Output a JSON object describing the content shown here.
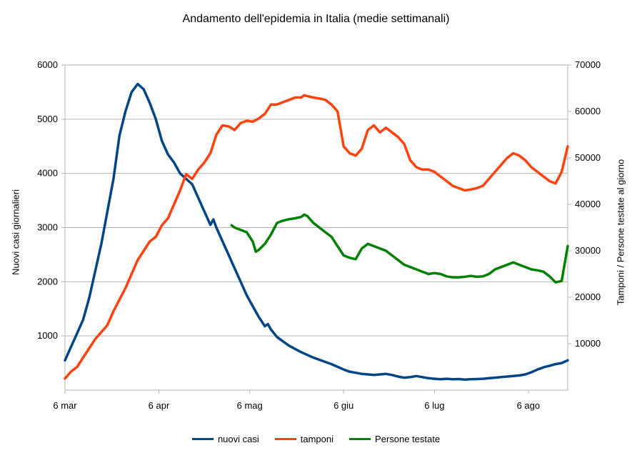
{
  "chart_data": {
    "type": "line",
    "title": "Andamento dell'epidemia in Italia (medie settimanali)",
    "ylabel_left": "Nuovi casi giornalieri",
    "ylabel_right": "Tamponi / Persone testate al giorno",
    "x_ticks": [
      "6 mar",
      "6 apr",
      "6 mag",
      "6 giu",
      "6 lug",
      "6 ago"
    ],
    "x_tick_days": [
      0,
      31,
      61,
      92,
      122,
      153
    ],
    "xlim": [
      0,
      166
    ],
    "ylim_left": [
      0,
      6000
    ],
    "ylim_right": [
      0,
      70000
    ],
    "yticks_left": [
      1000,
      2000,
      3000,
      4000,
      5000,
      6000
    ],
    "yticks_right": [
      10000,
      20000,
      30000,
      40000,
      50000,
      60000,
      70000
    ],
    "grid": true,
    "legend_position": "bottom",
    "series": [
      {
        "name": "nuovi casi",
        "axis": "left",
        "color": "#004586",
        "points": [
          [
            0,
            550
          ],
          [
            2,
            800
          ],
          [
            4,
            1050
          ],
          [
            6,
            1300
          ],
          [
            8,
            1700
          ],
          [
            10,
            2200
          ],
          [
            12,
            2700
          ],
          [
            14,
            3300
          ],
          [
            16,
            3900
          ],
          [
            18,
            4700
          ],
          [
            20,
            5150
          ],
          [
            22,
            5500
          ],
          [
            24,
            5650
          ],
          [
            26,
            5550
          ],
          [
            28,
            5300
          ],
          [
            30,
            5000
          ],
          [
            32,
            4600
          ],
          [
            34,
            4350
          ],
          [
            36,
            4200
          ],
          [
            38,
            4000
          ],
          [
            40,
            3900
          ],
          [
            42,
            3800
          ],
          [
            44,
            3550
          ],
          [
            46,
            3300
          ],
          [
            48,
            3050
          ],
          [
            49,
            3150
          ],
          [
            50,
            3000
          ],
          [
            52,
            2750
          ],
          [
            54,
            2500
          ],
          [
            56,
            2250
          ],
          [
            58,
            2000
          ],
          [
            60,
            1750
          ],
          [
            62,
            1550
          ],
          [
            64,
            1350
          ],
          [
            66,
            1180
          ],
          [
            67,
            1220
          ],
          [
            68,
            1120
          ],
          [
            70,
            980
          ],
          [
            72,
            900
          ],
          [
            74,
            820
          ],
          [
            76,
            760
          ],
          [
            78,
            700
          ],
          [
            80,
            650
          ],
          [
            82,
            600
          ],
          [
            84,
            560
          ],
          [
            86,
            520
          ],
          [
            88,
            480
          ],
          [
            90,
            430
          ],
          [
            92,
            380
          ],
          [
            94,
            340
          ],
          [
            96,
            320
          ],
          [
            98,
            300
          ],
          [
            100,
            290
          ],
          [
            102,
            280
          ],
          [
            104,
            290
          ],
          [
            106,
            300
          ],
          [
            108,
            280
          ],
          [
            110,
            250
          ],
          [
            112,
            230
          ],
          [
            114,
            240
          ],
          [
            116,
            260
          ],
          [
            118,
            240
          ],
          [
            120,
            220
          ],
          [
            122,
            210
          ],
          [
            124,
            200
          ],
          [
            126,
            210
          ],
          [
            128,
            200
          ],
          [
            130,
            205
          ],
          [
            132,
            195
          ],
          [
            134,
            200
          ],
          [
            136,
            205
          ],
          [
            138,
            210
          ],
          [
            140,
            220
          ],
          [
            142,
            230
          ],
          [
            144,
            240
          ],
          [
            146,
            250
          ],
          [
            148,
            260
          ],
          [
            150,
            270
          ],
          [
            152,
            290
          ],
          [
            154,
            330
          ],
          [
            156,
            380
          ],
          [
            158,
            420
          ],
          [
            160,
            450
          ],
          [
            162,
            480
          ],
          [
            164,
            500
          ],
          [
            166,
            550
          ]
        ]
      },
      {
        "name": "tamponi",
        "axis": "right",
        "color": "#ff420e",
        "points": [
          [
            0,
            2500
          ],
          [
            2,
            4000
          ],
          [
            4,
            5000
          ],
          [
            6,
            7000
          ],
          [
            8,
            9000
          ],
          [
            10,
            11000
          ],
          [
            12,
            12500
          ],
          [
            14,
            14000
          ],
          [
            16,
            17000
          ],
          [
            18,
            19500
          ],
          [
            20,
            22000
          ],
          [
            22,
            25000
          ],
          [
            24,
            28000
          ],
          [
            26,
            30000
          ],
          [
            28,
            32000
          ],
          [
            30,
            33000
          ],
          [
            32,
            35500
          ],
          [
            34,
            37000
          ],
          [
            36,
            40000
          ],
          [
            38,
            43000
          ],
          [
            40,
            46500
          ],
          [
            42,
            45500
          ],
          [
            44,
            47500
          ],
          [
            46,
            49000
          ],
          [
            48,
            51000
          ],
          [
            50,
            55000
          ],
          [
            52,
            57000
          ],
          [
            54,
            56800
          ],
          [
            56,
            56000
          ],
          [
            58,
            57500
          ],
          [
            60,
            58000
          ],
          [
            62,
            57800
          ],
          [
            64,
            58500
          ],
          [
            66,
            59500
          ],
          [
            68,
            61500
          ],
          [
            70,
            61500
          ],
          [
            72,
            62000
          ],
          [
            74,
            62500
          ],
          [
            76,
            63000
          ],
          [
            78,
            63000
          ],
          [
            79,
            63500
          ],
          [
            80,
            63300
          ],
          [
            82,
            63000
          ],
          [
            84,
            62800
          ],
          [
            86,
            62500
          ],
          [
            88,
            61500
          ],
          [
            90,
            60000
          ],
          [
            92,
            52500
          ],
          [
            94,
            51000
          ],
          [
            96,
            50500
          ],
          [
            98,
            52000
          ],
          [
            100,
            56000
          ],
          [
            102,
            57000
          ],
          [
            104,
            55500
          ],
          [
            106,
            56500
          ],
          [
            108,
            55500
          ],
          [
            110,
            54500
          ],
          [
            112,
            53000
          ],
          [
            114,
            49500
          ],
          [
            116,
            48000
          ],
          [
            118,
            47500
          ],
          [
            120,
            47500
          ],
          [
            122,
            47000
          ],
          [
            124,
            46000
          ],
          [
            126,
            45000
          ],
          [
            128,
            44000
          ],
          [
            130,
            43500
          ],
          [
            132,
            43000
          ],
          [
            134,
            43200
          ],
          [
            136,
            43500
          ],
          [
            138,
            44000
          ],
          [
            140,
            45500
          ],
          [
            142,
            47000
          ],
          [
            144,
            48500
          ],
          [
            146,
            50000
          ],
          [
            148,
            51000
          ],
          [
            150,
            50500
          ],
          [
            152,
            49500
          ],
          [
            154,
            48000
          ],
          [
            156,
            47000
          ],
          [
            158,
            46000
          ],
          [
            160,
            45000
          ],
          [
            162,
            44500
          ],
          [
            164,
            47000
          ],
          [
            166,
            52500
          ]
        ]
      },
      {
        "name": "Persone testate",
        "axis": "right",
        "color": "#008000",
        "points": [
          [
            55,
            35500
          ],
          [
            56,
            35000
          ],
          [
            58,
            34500
          ],
          [
            60,
            34000
          ],
          [
            62,
            32000
          ],
          [
            63,
            29800
          ],
          [
            64,
            30200
          ],
          [
            66,
            31500
          ],
          [
            68,
            33500
          ],
          [
            70,
            36000
          ],
          [
            72,
            36500
          ],
          [
            74,
            36800
          ],
          [
            76,
            37000
          ],
          [
            78,
            37300
          ],
          [
            79,
            37800
          ],
          [
            80,
            37500
          ],
          [
            82,
            36000
          ],
          [
            84,
            35000
          ],
          [
            86,
            34000
          ],
          [
            88,
            33000
          ],
          [
            90,
            31000
          ],
          [
            92,
            29000
          ],
          [
            94,
            28500
          ],
          [
            96,
            28200
          ],
          [
            98,
            30500
          ],
          [
            100,
            31500
          ],
          [
            102,
            31000
          ],
          [
            104,
            30500
          ],
          [
            106,
            30000
          ],
          [
            108,
            29000
          ],
          [
            110,
            28000
          ],
          [
            112,
            27000
          ],
          [
            114,
            26500
          ],
          [
            116,
            26000
          ],
          [
            118,
            25500
          ],
          [
            120,
            25000
          ],
          [
            122,
            25200
          ],
          [
            124,
            25000
          ],
          [
            126,
            24500
          ],
          [
            128,
            24300
          ],
          [
            130,
            24300
          ],
          [
            132,
            24400
          ],
          [
            134,
            24600
          ],
          [
            136,
            24400
          ],
          [
            138,
            24500
          ],
          [
            140,
            25000
          ],
          [
            142,
            26000
          ],
          [
            144,
            26500
          ],
          [
            146,
            27000
          ],
          [
            148,
            27500
          ],
          [
            150,
            27000
          ],
          [
            152,
            26500
          ],
          [
            154,
            26000
          ],
          [
            156,
            25800
          ],
          [
            158,
            25500
          ],
          [
            160,
            24500
          ],
          [
            162,
            23200
          ],
          [
            164,
            23500
          ],
          [
            166,
            31000
          ]
        ]
      }
    ]
  }
}
